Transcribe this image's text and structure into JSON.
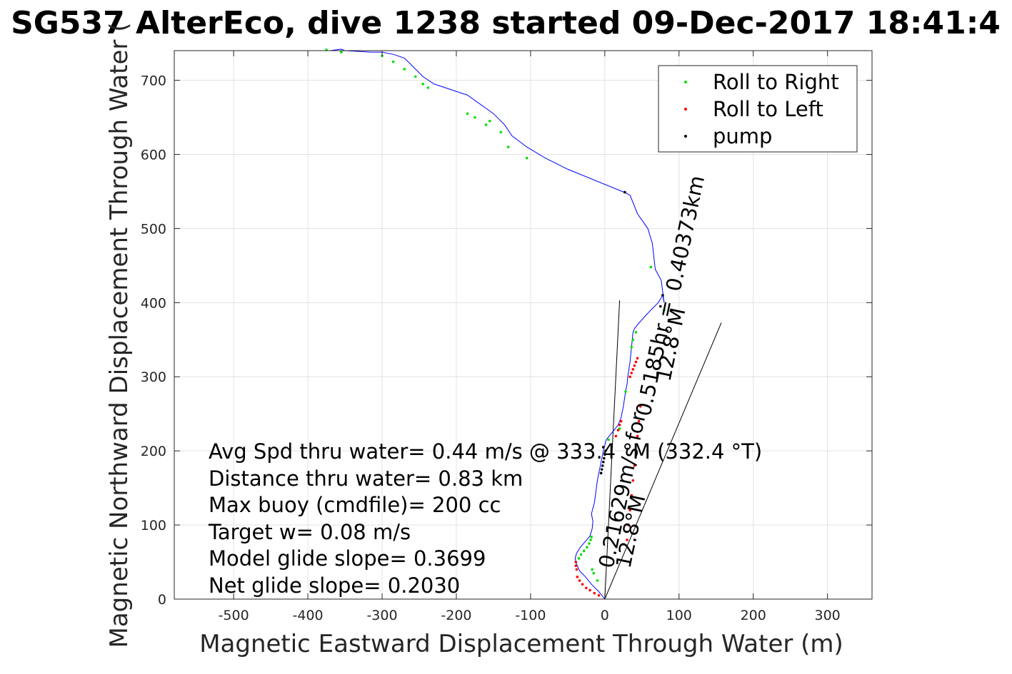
{
  "chart_data": {
    "type": "line",
    "title": "SG537 AlterEco, dive 1238 started 09-Dec-2017 18:41:4",
    "xlabel": "Magnetic Eastward Displacement Through Water (m)",
    "ylabel": "Magnetic Northward Displacement Through Water (",
    "xlim": [
      -580,
      360
    ],
    "ylim": [
      0,
      740
    ],
    "xticks": [
      -500,
      -400,
      -300,
      -200,
      -100,
      0,
      100,
      200,
      300
    ],
    "yticks": [
      0,
      100,
      200,
      300,
      400,
      500,
      600,
      700
    ],
    "xtick_labels": [
      "-500",
      "-400",
      "-300",
      "-200",
      "-100",
      "0",
      "100",
      "200",
      "300"
    ],
    "ytick_labels": [
      "0",
      "100",
      "200",
      "300",
      "400",
      "500",
      "600",
      "700"
    ],
    "grid": true,
    "legend_position": "top-right",
    "legend": [
      {
        "label": "Roll to Right",
        "color": "#00e000"
      },
      {
        "label": "Roll to Left",
        "color": "#ff0000"
      },
      {
        "label": "pump",
        "color": "#000000"
      }
    ],
    "track": {
      "color": "#0000ff",
      "x": [
        0,
        -8,
        -18,
        -26,
        -34,
        -38,
        -40,
        -38,
        -33,
        -26,
        -20,
        -17,
        -16,
        -18,
        -14,
        -10,
        -8,
        -6,
        -4,
        -2,
        2,
        10,
        18,
        22,
        25,
        28,
        30,
        31,
        34,
        36,
        37,
        38,
        40,
        44,
        50,
        62,
        72,
        78,
        80,
        76,
        68,
        64,
        58,
        44,
        34,
        26,
        -50,
        -80,
        -105,
        -125,
        -135,
        -150,
        -185,
        -230,
        -245,
        -260,
        -270,
        -285,
        -300,
        -315,
        -350,
        -355,
        -370
      ],
      "y": [
        0,
        10,
        20,
        30,
        38,
        47,
        55,
        62,
        70,
        78,
        85,
        95,
        105,
        115,
        130,
        160,
        170,
        180,
        190,
        200,
        215,
        225,
        235,
        245,
        260,
        280,
        290,
        300,
        320,
        340,
        350,
        360,
        365,
        370,
        377,
        390,
        400,
        410,
        400,
        430,
        445,
        480,
        500,
        520,
        545,
        549,
        580,
        595,
        610,
        625,
        640,
        655,
        680,
        695,
        705,
        720,
        730,
        735,
        738,
        738,
        740,
        742,
        740
      ]
    },
    "roll_right_points": {
      "x": [
        -35,
        -32,
        -28,
        -24,
        -21,
        -19,
        -18,
        -17,
        -15,
        -10,
        5,
        20,
        28,
        36,
        38,
        42,
        62,
        80,
        -105,
        -130,
        -140,
        -155,
        -160,
        -175,
        -185,
        -238,
        -245,
        -255,
        -270,
        -285,
        -300,
        -355,
        -375
      ],
      "y": [
        55,
        60,
        65,
        70,
        75,
        80,
        84,
        40,
        35,
        25,
        215,
        230,
        280,
        340,
        350,
        360,
        448,
        390,
        595,
        610,
        630,
        645,
        640,
        650,
        655,
        690,
        695,
        705,
        715,
        725,
        733,
        738,
        741
      ]
    },
    "roll_left_points": {
      "x": [
        -38,
        -39,
        -39,
        -37,
        -34,
        -30,
        -25,
        -20,
        -14,
        -8,
        15,
        18,
        20,
        22,
        34,
        36,
        38,
        40,
        42,
        44,
        30,
        32,
        34,
        36,
        38,
        40,
        42,
        44,
        46,
        48
      ],
      "y": [
        40,
        45,
        50,
        30,
        25,
        20,
        15,
        12,
        8,
        5,
        220,
        228,
        235,
        240,
        300,
        305,
        310,
        315,
        320,
        325,
        80,
        100,
        120,
        140,
        160,
        180,
        200,
        220,
        240,
        260
      ]
    },
    "pump_points": {
      "x": [
        -5,
        -4,
        -3,
        -2,
        -1,
        0,
        1,
        -2,
        27,
        78,
        75
      ],
      "y": [
        170,
        175,
        180,
        185,
        190,
        195,
        200,
        205,
        549,
        410,
        395
      ]
    },
    "heading_lines": [
      {
        "x": [
          0,
          20
        ],
        "y": [
          0,
          403
        ]
      },
      {
        "x": [
          0,
          157
        ],
        "y": [
          0,
          373
        ]
      }
    ],
    "annotations": [
      "Avg Spd thru water=  0.44 m/s @ 333.4 °M (332.4 °T)",
      "Distance thru water=  0.83 km",
      "Max buoy (cmdfile)= 200 cc",
      "Target w= 0.08 m/s",
      "Model glide slope= 0.3699",
      "Net glide slope= 0.2030"
    ],
    "rotated_labels": [
      "0.40373km",
      "12.8°M",
      "0.5185hr =",
      "0.21629m/s for",
      "12.8°M"
    ]
  }
}
